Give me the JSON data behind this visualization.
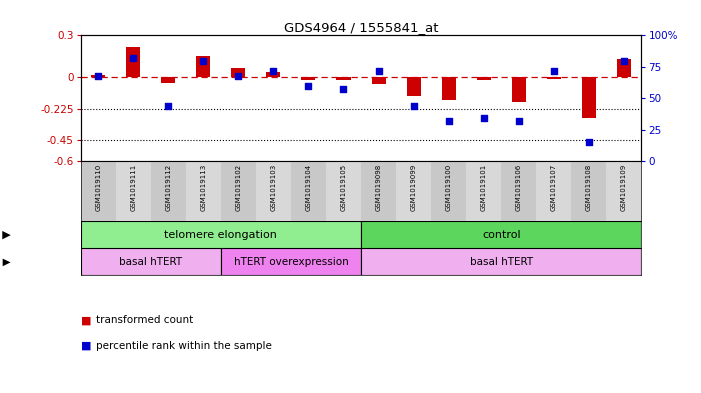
{
  "title": "GDS4964 / 1555841_at",
  "samples": [
    "GSM1019110",
    "GSM1019111",
    "GSM1019112",
    "GSM1019113",
    "GSM1019102",
    "GSM1019103",
    "GSM1019104",
    "GSM1019105",
    "GSM1019098",
    "GSM1019099",
    "GSM1019100",
    "GSM1019101",
    "GSM1019106",
    "GSM1019107",
    "GSM1019108",
    "GSM1019109"
  ],
  "red_bars": [
    0.02,
    0.22,
    -0.04,
    0.15,
    0.07,
    0.04,
    -0.02,
    -0.02,
    -0.05,
    -0.13,
    -0.16,
    -0.02,
    -0.18,
    -0.01,
    -0.29,
    0.13
  ],
  "blue_percentiles": [
    68,
    82,
    44,
    80,
    68,
    72,
    60,
    57,
    72,
    44,
    32,
    34,
    32,
    72,
    15,
    80
  ],
  "ylim_left": [
    -0.6,
    0.3
  ],
  "ylim_right": [
    0,
    100
  ],
  "yticks_left": [
    -0.6,
    -0.45,
    -0.225,
    0.0,
    0.3
  ],
  "ytick_labels_left": [
    "-0.6",
    "-0.45",
    "-0.225",
    "0",
    "0.3"
  ],
  "yticks_right": [
    0,
    25,
    50,
    75,
    100
  ],
  "ytick_labels_right": [
    "0",
    "25",
    "50",
    "75",
    "100%"
  ],
  "hline_y": 0.0,
  "dotted_lines": [
    -0.225,
    -0.45
  ],
  "protocol_groups": [
    {
      "label": "telomere elongation",
      "start": 0,
      "end": 8,
      "color": "#90EE90"
    },
    {
      "label": "control",
      "start": 8,
      "end": 16,
      "color": "#5CD65C"
    }
  ],
  "genotype_groups": [
    {
      "label": "basal hTERT",
      "start": 0,
      "end": 4,
      "color": "#F0B0F0"
    },
    {
      "label": "hTERT overexpression",
      "start": 4,
      "end": 8,
      "color": "#EE82EE"
    },
    {
      "label": "basal hTERT",
      "start": 8,
      "end": 16,
      "color": "#F0B0F0"
    }
  ],
  "bar_color": "#CC0000",
  "square_color": "#0000CC",
  "bg_color": "#FFFFFF",
  "bar_width": 0.4,
  "square_size": 18,
  "sample_colors": [
    "#C8C8C8",
    "#D8D8D8"
  ]
}
